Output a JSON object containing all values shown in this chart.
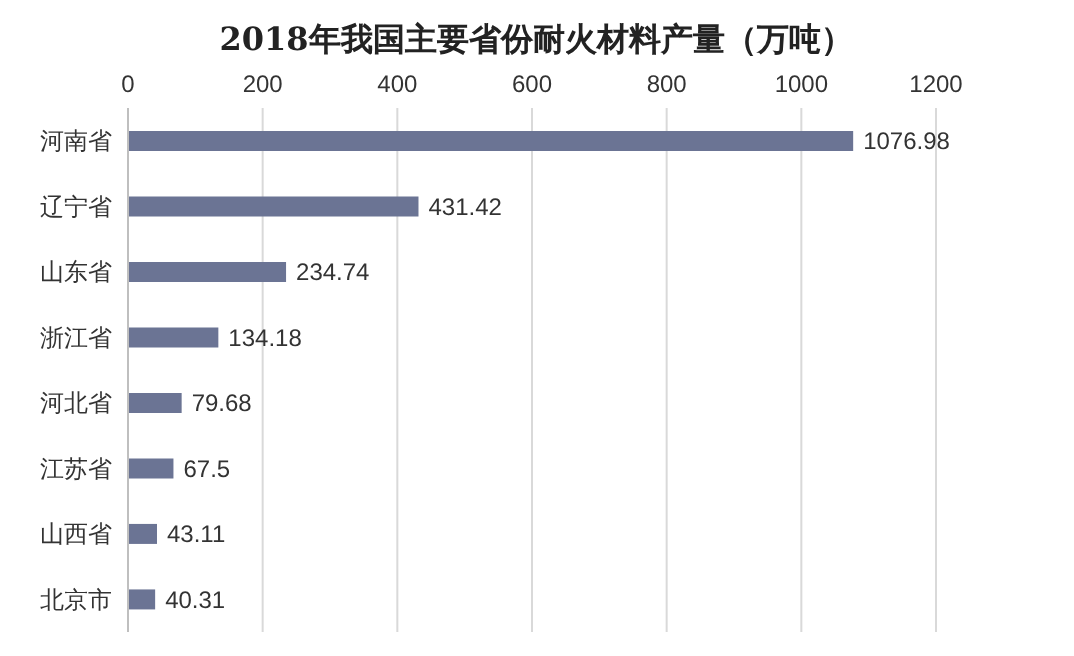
{
  "chart_data": {
    "type": "bar",
    "orientation": "horizontal",
    "title": "2018年我国主要省份耐火材料产量（万吨）",
    "categories": [
      "河南省",
      "辽宁省",
      "山东省",
      "浙江省",
      "河北省",
      "江苏省",
      "山西省",
      "北京市"
    ],
    "values": [
      1076.98,
      431.42,
      234.74,
      134.18,
      79.68,
      67.5,
      43.11,
      40.31
    ],
    "color": "#6b7494",
    "xlim": [
      0,
      1200
    ],
    "xticks": [
      0,
      200,
      400,
      600,
      800,
      1000,
      1200
    ],
    "grid": "x",
    "data_labels": true,
    "legend": false
  }
}
